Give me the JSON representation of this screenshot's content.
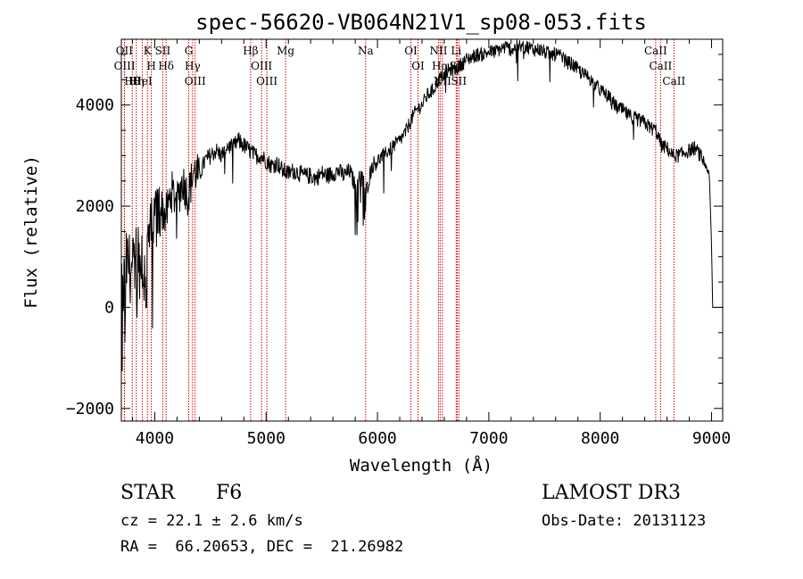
{
  "chart_data": {
    "type": "line",
    "title": "spec-56620-VB064N21V1_sp08-053.fits",
    "xlabel": "Wavelength (Å)",
    "ylabel": "Flux (relative)",
    "xlim": [
      3700,
      9100
    ],
    "ylim": [
      -2250,
      5300
    ],
    "x_ticks": [
      4000,
      5000,
      6000,
      7000,
      8000,
      9000
    ],
    "x_tick_labels": [
      "4000",
      "5000",
      "6000",
      "7000",
      "8000",
      "9000"
    ],
    "y_ticks": [
      -2000,
      0,
      2000,
      4000
    ],
    "y_tick_labels": [
      "−2000",
      "0",
      "2000",
      "4000"
    ],
    "grid": false,
    "series": [
      {
        "name": "spectrum",
        "x": [
          3700,
          3750,
          3800,
          3850,
          3900,
          3950,
          4000,
          4050,
          4100,
          4150,
          4200,
          4250,
          4300,
          4350,
          4400,
          4450,
          4500,
          4550,
          4600,
          4650,
          4700,
          4750,
          4800,
          4850,
          4900,
          4950,
          5000,
          5050,
          5100,
          5150,
          5200,
          5250,
          5300,
          5350,
          5400,
          5450,
          5500,
          5550,
          5600,
          5650,
          5700,
          5750,
          5800,
          5850,
          5900,
          5950,
          6000,
          6050,
          6100,
          6150,
          6200,
          6250,
          6300,
          6350,
          6400,
          6450,
          6500,
          6550,
          6600,
          6650,
          6700,
          6750,
          6800,
          6850,
          6900,
          6950,
          7000,
          7050,
          7100,
          7150,
          7200,
          7250,
          7300,
          7350,
          7400,
          7450,
          7500,
          7550,
          7600,
          7650,
          7700,
          7750,
          7800,
          7850,
          7900,
          7950,
          8000,
          8050,
          8100,
          8150,
          8200,
          8250,
          8300,
          8350,
          8400,
          8450,
          8500,
          8550,
          8600,
          8650,
          8700,
          8750,
          8800,
          8850,
          8900,
          8950,
          8980,
          9000,
          9010
        ],
        "values": [
          100,
          900,
          700,
          1100,
          600,
          1400,
          1600,
          2000,
          1800,
          2300,
          2100,
          2500,
          2200,
          2700,
          2600,
          2900,
          3000,
          3100,
          3000,
          3200,
          3150,
          3300,
          3200,
          3100,
          3000,
          3000,
          2900,
          2800,
          2850,
          2700,
          2650,
          2700,
          2650,
          2600,
          2600,
          2550,
          2650,
          2600,
          2650,
          2700,
          2600,
          2700,
          2400,
          2600,
          2300,
          2800,
          2900,
          3000,
          3100,
          3200,
          3300,
          3450,
          3700,
          3900,
          4000,
          4200,
          4300,
          4500,
          4600,
          4700,
          4700,
          4800,
          4900,
          4950,
          5000,
          5000,
          5050,
          5050,
          5100,
          5150,
          5100,
          5150,
          5150,
          5150,
          5100,
          5100,
          5050,
          5000,
          5000,
          4950,
          4850,
          4800,
          4700,
          4600,
          4550,
          4400,
          4300,
          4200,
          4100,
          3950,
          3900,
          3800,
          3750,
          3700,
          3650,
          3550,
          3500,
          3200,
          3150,
          3000,
          3000,
          3050,
          3100,
          3150,
          3000,
          2800,
          2600,
          1200,
          0
        ]
      }
    ],
    "line_markers": [
      {
        "label": "OII",
        "x": 3727
      },
      {
        "label": "OIII",
        "x": 3729
      },
      {
        "label": "Hθ",
        "x": 3798
      },
      {
        "label": "Hη",
        "x": 3835
      },
      {
        "label": "HeI",
        "x": 3889
      },
      {
        "label": "K",
        "x": 3934
      },
      {
        "label": "H",
        "x": 3969
      },
      {
        "label": "SII",
        "x": 4072
      },
      {
        "label": "Hδ",
        "x": 4102
      },
      {
        "label": "G",
        "x": 4305
      },
      {
        "label": "Hγ",
        "x": 4340
      },
      {
        "label": "OIII",
        "x": 4363
      },
      {
        "label": "Hβ",
        "x": 4861
      },
      {
        "label": "OIII",
        "x": 4959
      },
      {
        "label": "OIII",
        "x": 5007
      },
      {
        "label": "Mg",
        "x": 5175
      },
      {
        "label": "Na",
        "x": 5894
      },
      {
        "label": "OI",
        "x": 6300
      },
      {
        "label": "OI",
        "x": 6364
      },
      {
        "label": "NII",
        "x": 6548
      },
      {
        "label": "Hα",
        "x": 6563
      },
      {
        "label": "NII",
        "x": 6583
      },
      {
        "label": "Li",
        "x": 6707
      },
      {
        "label": "SII",
        "x": 6716
      },
      {
        "label": "SII",
        "x": 6731
      },
      {
        "label": "CaII",
        "x": 8498
      },
      {
        "label": "CaII",
        "x": 8542
      },
      {
        "label": "CaII",
        "x": 8662
      }
    ],
    "marker_color": "#cc0000"
  },
  "info": {
    "object_class": "STAR",
    "subclass": "F6",
    "survey": "LAMOST DR3",
    "redshift": "cz = 22.1 ± 2.6 km/s",
    "obs_date": "Obs-Date: 20131123",
    "coords": "RA =  66.20653, DEC =  21.26982"
  }
}
